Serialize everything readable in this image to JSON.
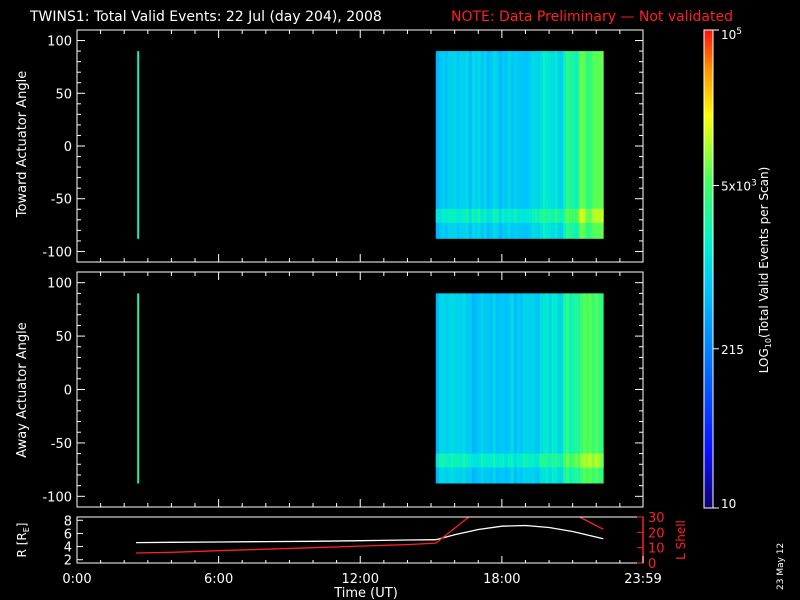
{
  "header": {
    "title": "TWINS1: Total Valid Events: 22 Jul (day 204), 2008",
    "note": "NOTE: Data Preliminary — Not validated",
    "title_color": "#ffffff",
    "note_color": "#ff2020"
  },
  "date_stamp": "23 May 12",
  "chart_data": [
    {
      "type": "heatmap",
      "name": "toward",
      "ylabel": "Toward Actuator Angle",
      "ylim": [
        -110,
        110
      ],
      "yticks": [
        100,
        50,
        0,
        -50,
        -100
      ],
      "xlim": [
        0,
        23.98
      ],
      "angle_range": [
        -88,
        90
      ],
      "spikes": [
        {
          "t_start": 2.55,
          "t_end": 2.62,
          "level": 0.58
        }
      ],
      "blocks": [
        {
          "t_start": 15.2,
          "t_end": 19.6,
          "level": 0.47
        },
        {
          "t_start": 19.6,
          "t_end": 20.6,
          "level": 0.52
        },
        {
          "t_start": 20.6,
          "t_end": 21.3,
          "level": 0.6
        },
        {
          "t_start": 21.3,
          "t_end": 22.3,
          "level": 0.68
        }
      ]
    },
    {
      "type": "heatmap",
      "name": "away",
      "ylabel": "Away Actuator Angle",
      "ylim": [
        -110,
        110
      ],
      "yticks": [
        100,
        50,
        0,
        -50,
        -100
      ],
      "xlim": [
        0,
        23.98
      ],
      "angle_range": [
        -88,
        90
      ],
      "spikes": [
        {
          "t_start": 2.55,
          "t_end": 2.62,
          "level": 0.6
        }
      ],
      "blocks": [
        {
          "t_start": 15.2,
          "t_end": 19.6,
          "level": 0.47
        },
        {
          "t_start": 19.6,
          "t_end": 20.6,
          "level": 0.52
        },
        {
          "t_start": 20.6,
          "t_end": 21.3,
          "level": 0.6
        },
        {
          "t_start": 21.3,
          "t_end": 22.3,
          "level": 0.66
        }
      ]
    },
    {
      "type": "line",
      "name": "orbit",
      "xlabel": "Time (UT)",
      "x_ticks": [
        {
          "t": 0,
          "label": "0:00"
        },
        {
          "t": 6,
          "label": "6:00"
        },
        {
          "t": 12,
          "label": "12:00"
        },
        {
          "t": 18,
          "label": "18:00"
        },
        {
          "t": 23.98,
          "label": "23:59"
        }
      ],
      "left_axis": {
        "label": "R [R",
        "label_sub": "E",
        "label_end": "]",
        "ylim": [
          1.5,
          8.5
        ],
        "ticks": [
          8,
          6,
          4,
          2
        ],
        "color": "#ffffff"
      },
      "right_axis": {
        "label": "L Shell",
        "ylim": [
          0,
          30
        ],
        "ticks": [
          30,
          20,
          10,
          0
        ],
        "color": "#ff2020"
      },
      "series": [
        {
          "axis": "left",
          "color": "#ffffff",
          "x": [
            2.5,
            4,
            6,
            8,
            10,
            12,
            14,
            15.2,
            16,
            17,
            18,
            19,
            20,
            21,
            22.3
          ],
          "y": [
            4.6,
            4.65,
            4.7,
            4.75,
            4.8,
            4.9,
            5.0,
            5.05,
            5.8,
            6.6,
            7.1,
            7.2,
            6.9,
            6.3,
            5.2
          ]
        },
        {
          "axis": "right",
          "color": "#ff2020",
          "x": [
            2.5,
            4,
            6,
            8,
            10,
            12,
            14,
            15.2,
            16.6
          ],
          "y": [
            6.5,
            7.0,
            8.0,
            9.0,
            10.0,
            11.0,
            12.0,
            13.0,
            30.0
          ]
        },
        {
          "axis": "right",
          "color": "#ff2020",
          "x": [
            21.3,
            22.3
          ],
          "y": [
            30.0,
            22.0
          ]
        }
      ]
    }
  ],
  "colorbar": {
    "label": "LOG",
    "label_sub": "10",
    "label_end": "(Total Valid Events per Scan)",
    "ticks": [
      {
        "value": 10,
        "text": "10"
      },
      {
        "value": 215,
        "text": "215"
      },
      {
        "value": 5000,
        "text": "5x10",
        "sup": "3"
      },
      {
        "value": 100000,
        "text": "10",
        "sup": "5"
      }
    ],
    "range": [
      10,
      100000
    ]
  }
}
